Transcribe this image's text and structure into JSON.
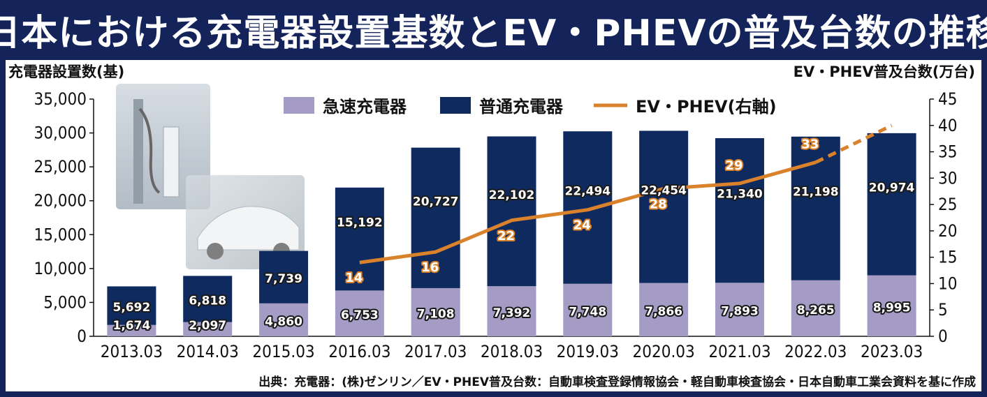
{
  "title": "日本における充電器設置基数とEV・PHEVの普及台数の推移",
  "source": "出典：充電器：(株)ゼンリン／EV・PHEV普及台数：自動車検査登録情報協会・軽自動車検査協会・日本自動車工業会資料を基に作成",
  "colors": {
    "quick": "#a49cc4",
    "normal": "#0f2a5e",
    "line": "#d9822b",
    "frame": "#14245a"
  },
  "chart_data": {
    "type": "bar",
    "stacked": true,
    "categories": [
      "2013.03",
      "2014.03",
      "2015.03",
      "2016.03",
      "2017.03",
      "2018.03",
      "2019.03",
      "2020.03",
      "2021.03",
      "2022.03",
      "2023.03"
    ],
    "series": [
      {
        "name": "急速充電器",
        "values": [
          1674,
          2097,
          4860,
          6753,
          7108,
          7392,
          7748,
          7866,
          7893,
          8265,
          8995
        ],
        "labels": [
          "1,674",
          "2,097",
          "4,860",
          "6,753",
          "7,108",
          "7,392",
          "7,748",
          "7,866",
          "7,893",
          "8,265",
          "8,995"
        ]
      },
      {
        "name": "普通充電器",
        "values": [
          5692,
          6818,
          7739,
          15192,
          20727,
          22102,
          22494,
          22454,
          21340,
          21198,
          20974
        ],
        "labels": [
          "5,692",
          "6,818",
          "7,739",
          "15,192",
          "20,727",
          "22,102",
          "22,494",
          "22,454",
          "21,340",
          "21,198",
          "20,974"
        ]
      }
    ],
    "line_series": {
      "name": "EV・PHEV(右軸)",
      "axis": "right",
      "values": [
        null,
        null,
        null,
        14,
        16,
        22,
        24,
        28,
        29,
        33,
        40
      ],
      "labels": [
        null,
        null,
        null,
        "14",
        "16",
        "22",
        "24",
        "28",
        "29",
        "33",
        null
      ],
      "dashed_from_index": 9
    },
    "ylabel_left": "充電器設置数(基)",
    "ylabel_right": "EV・PHEV普及台数(万台)",
    "ylim_left": [
      0,
      35000
    ],
    "ylim_right": [
      0,
      45
    ],
    "yticks_left": [
      "0",
      "5,000",
      "10,000",
      "15,000",
      "20,000",
      "25,000",
      "30,000",
      "35,000"
    ],
    "yticks_right": [
      "0",
      "5",
      "10",
      "15",
      "20",
      "25",
      "30",
      "35",
      "40",
      "45"
    ],
    "legend_position": "top",
    "grid": false
  }
}
